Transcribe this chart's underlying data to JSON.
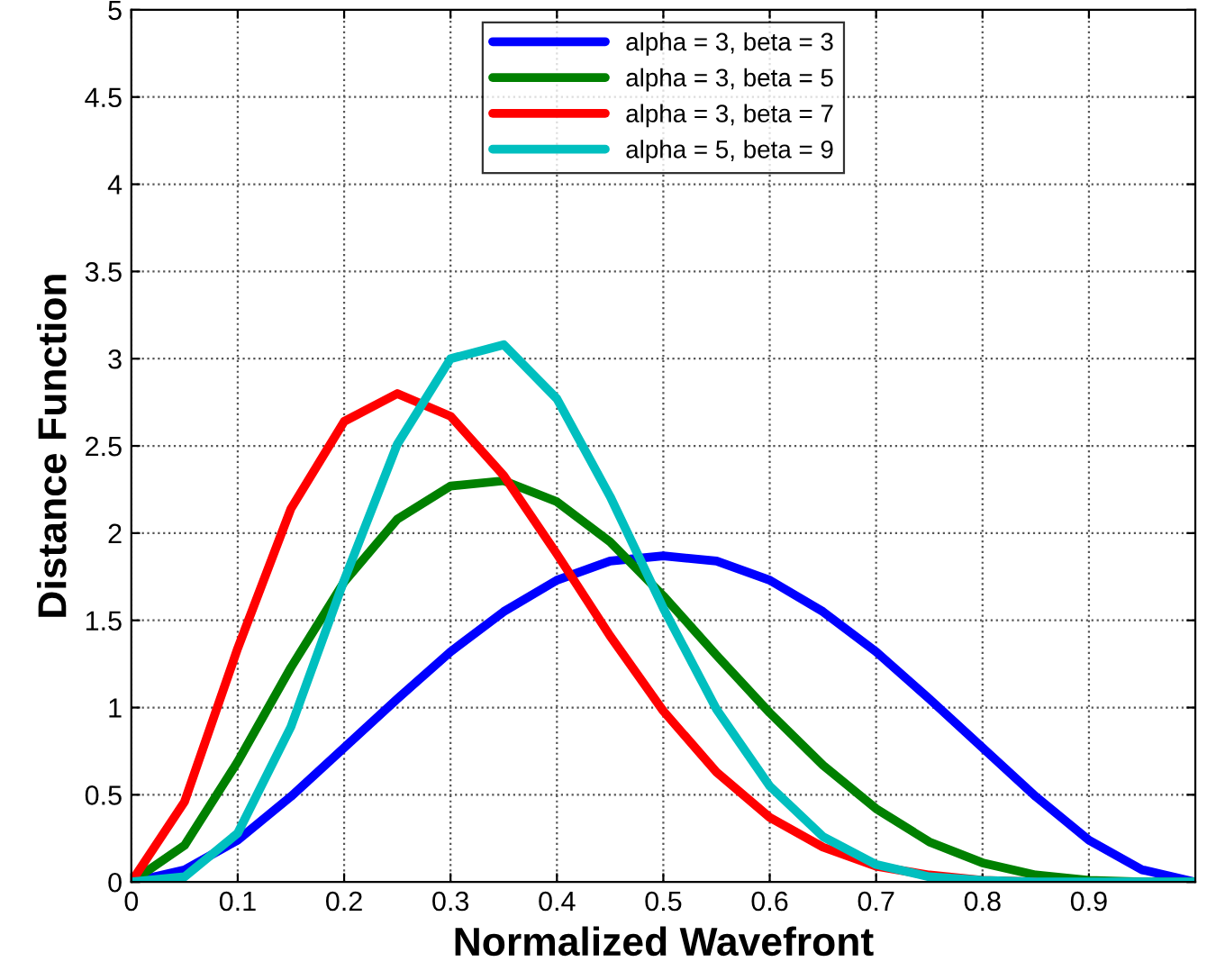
{
  "chart_data": {
    "type": "line",
    "xlabel": "Normalized Wavefront",
    "ylabel": "Distance Function",
    "x": [
      0,
      0.05,
      0.1,
      0.15,
      0.2,
      0.25,
      0.3,
      0.35,
      0.4,
      0.45,
      0.5,
      0.55,
      0.6,
      0.65,
      0.7,
      0.75,
      0.8,
      0.85,
      0.9,
      0.95,
      1
    ],
    "series": [
      {
        "name": "alpha = 3, beta = 3",
        "color": "#0000ff",
        "values": [
          0,
          0.07,
          0.24,
          0.49,
          0.77,
          1.05,
          1.32,
          1.55,
          1.73,
          1.84,
          1.87,
          1.84,
          1.73,
          1.55,
          1.32,
          1.05,
          0.77,
          0.49,
          0.24,
          0.07,
          0
        ]
      },
      {
        "name": "alpha = 3, beta = 5",
        "color": "#008000",
        "values": [
          0,
          0.21,
          0.69,
          1.23,
          1.72,
          2.08,
          2.27,
          2.3,
          2.18,
          1.95,
          1.64,
          1.3,
          0.97,
          0.67,
          0.42,
          0.23,
          0.11,
          0.04,
          0.01,
          0,
          0
        ]
      },
      {
        "name": "alpha = 3, beta = 7",
        "color": "#ff0000",
        "values": [
          0,
          0.46,
          1.34,
          2.14,
          2.64,
          2.8,
          2.67,
          2.33,
          1.88,
          1.41,
          0.98,
          0.63,
          0.37,
          0.2,
          0.09,
          0.04,
          0.01,
          0,
          null,
          null,
          null
        ]
      },
      {
        "name": "alpha = 5, beta = 9",
        "color": "#00bfbf",
        "values": [
          0,
          0.03,
          0.28,
          0.89,
          1.73,
          2.51,
          3.0,
          3.08,
          2.77,
          2.21,
          1.57,
          0.99,
          0.55,
          0.26,
          0.1,
          0.03,
          0.01,
          0,
          0,
          0,
          0
        ]
      }
    ],
    "xlim": [
      0,
      1
    ],
    "xticks": [
      0,
      0.1,
      0.2,
      0.3,
      0.4,
      0.5,
      0.6,
      0.7,
      0.8,
      0.9
    ],
    "ylim": [
      0,
      5
    ],
    "yticks": [
      0,
      0.5,
      1,
      1.5,
      2,
      2.5,
      3,
      3.5,
      4,
      4.5,
      5
    ],
    "grid": true,
    "legend": "top",
    "line_style": "solid"
  }
}
